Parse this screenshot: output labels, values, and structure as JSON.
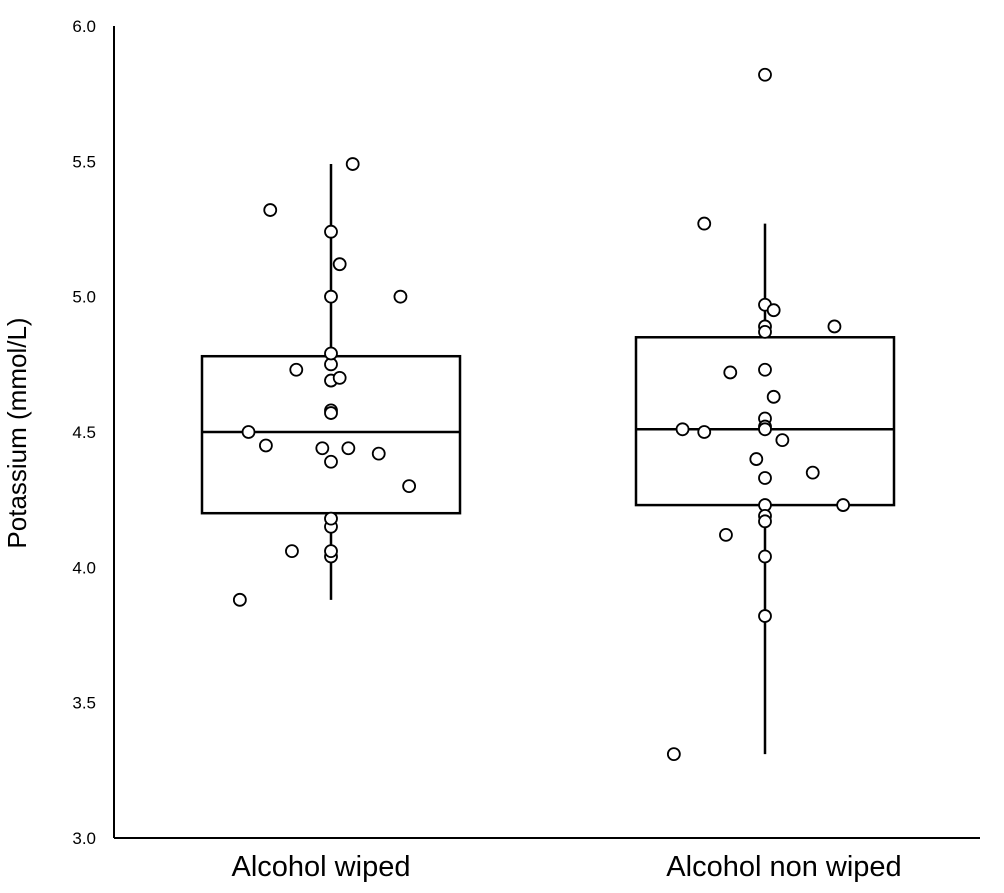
{
  "chart_data": {
    "type": "box",
    "title": "",
    "xlabel": "",
    "ylabel": "Potassium (mmol/L)",
    "ylim": [
      3.0,
      6.0
    ],
    "yticks": [
      "3.0",
      "3.5",
      "4.0",
      "4.5",
      "5.0",
      "5.5",
      "6.0"
    ],
    "categories": [
      "Alcohol wiped",
      "Alcohol non wiped"
    ],
    "grid": false,
    "series": [
      {
        "box": {
          "whisker_low": 3.88,
          "q1": 4.2,
          "median": 4.5,
          "q3": 4.78,
          "whisker_high": 5.49
        },
        "points": [
          {
            "jitter": 0.0,
            "value": 4.15
          },
          {
            "jitter": 0.0,
            "value": 4.18
          },
          {
            "jitter": 0.0,
            "value": 4.04
          },
          {
            "jitter": 0.0,
            "value": 4.39
          },
          {
            "jitter": 0.0,
            "value": 4.58
          },
          {
            "jitter": 0.0,
            "value": 4.57
          },
          {
            "jitter": 0.0,
            "value": 4.69
          },
          {
            "jitter": 0.0,
            "value": 4.75
          },
          {
            "jitter": 0.0,
            "value": 4.79
          },
          {
            "jitter": 0.0,
            "value": 5.0
          },
          {
            "jitter": 0.0,
            "value": 5.24
          },
          {
            "jitter": 0.02,
            "value": 5.12
          },
          {
            "jitter": 0.05,
            "value": 5.49
          },
          {
            "jitter": -0.14,
            "value": 5.32
          },
          {
            "jitter": 0.16,
            "value": 5.0
          },
          {
            "jitter": -0.08,
            "value": 4.73
          },
          {
            "jitter": 0.02,
            "value": 4.7
          },
          {
            "jitter": -0.19,
            "value": 4.5
          },
          {
            "jitter": -0.15,
            "value": 4.45
          },
          {
            "jitter": -0.02,
            "value": 4.44
          },
          {
            "jitter": 0.04,
            "value": 4.44
          },
          {
            "jitter": 0.11,
            "value": 4.42
          },
          {
            "jitter": 0.18,
            "value": 4.3
          },
          {
            "jitter": -0.09,
            "value": 4.06
          },
          {
            "jitter": 0.0,
            "value": 4.06
          },
          {
            "jitter": -0.21,
            "value": 3.88
          }
        ]
      },
      {
        "box": {
          "whisker_low": 3.31,
          "q1": 4.23,
          "median": 4.51,
          "q3": 4.85,
          "whisker_high": 5.27
        },
        "points": [
          {
            "jitter": 0.0,
            "value": 5.82
          },
          {
            "jitter": -0.14,
            "value": 5.27
          },
          {
            "jitter": 0.0,
            "value": 4.97
          },
          {
            "jitter": 0.02,
            "value": 4.95
          },
          {
            "jitter": 0.0,
            "value": 4.89
          },
          {
            "jitter": 0.0,
            "value": 4.87
          },
          {
            "jitter": 0.16,
            "value": 4.89
          },
          {
            "jitter": -0.08,
            "value": 4.72
          },
          {
            "jitter": 0.0,
            "value": 4.73
          },
          {
            "jitter": 0.02,
            "value": 4.63
          },
          {
            "jitter": 0.0,
            "value": 4.55
          },
          {
            "jitter": 0.0,
            "value": 4.52
          },
          {
            "jitter": 0.0,
            "value": 4.51
          },
          {
            "jitter": -0.19,
            "value": 4.51
          },
          {
            "jitter": -0.14,
            "value": 4.5
          },
          {
            "jitter": 0.04,
            "value": 4.47
          },
          {
            "jitter": -0.02,
            "value": 4.4
          },
          {
            "jitter": 0.11,
            "value": 4.35
          },
          {
            "jitter": 0.0,
            "value": 4.33
          },
          {
            "jitter": 0.0,
            "value": 4.23
          },
          {
            "jitter": 0.18,
            "value": 4.23
          },
          {
            "jitter": 0.0,
            "value": 4.19
          },
          {
            "jitter": 0.0,
            "value": 4.17
          },
          {
            "jitter": -0.09,
            "value": 4.12
          },
          {
            "jitter": 0.0,
            "value": 4.04
          },
          {
            "jitter": 0.0,
            "value": 3.82
          },
          {
            "jitter": -0.21,
            "value": 3.31
          }
        ]
      }
    ]
  }
}
